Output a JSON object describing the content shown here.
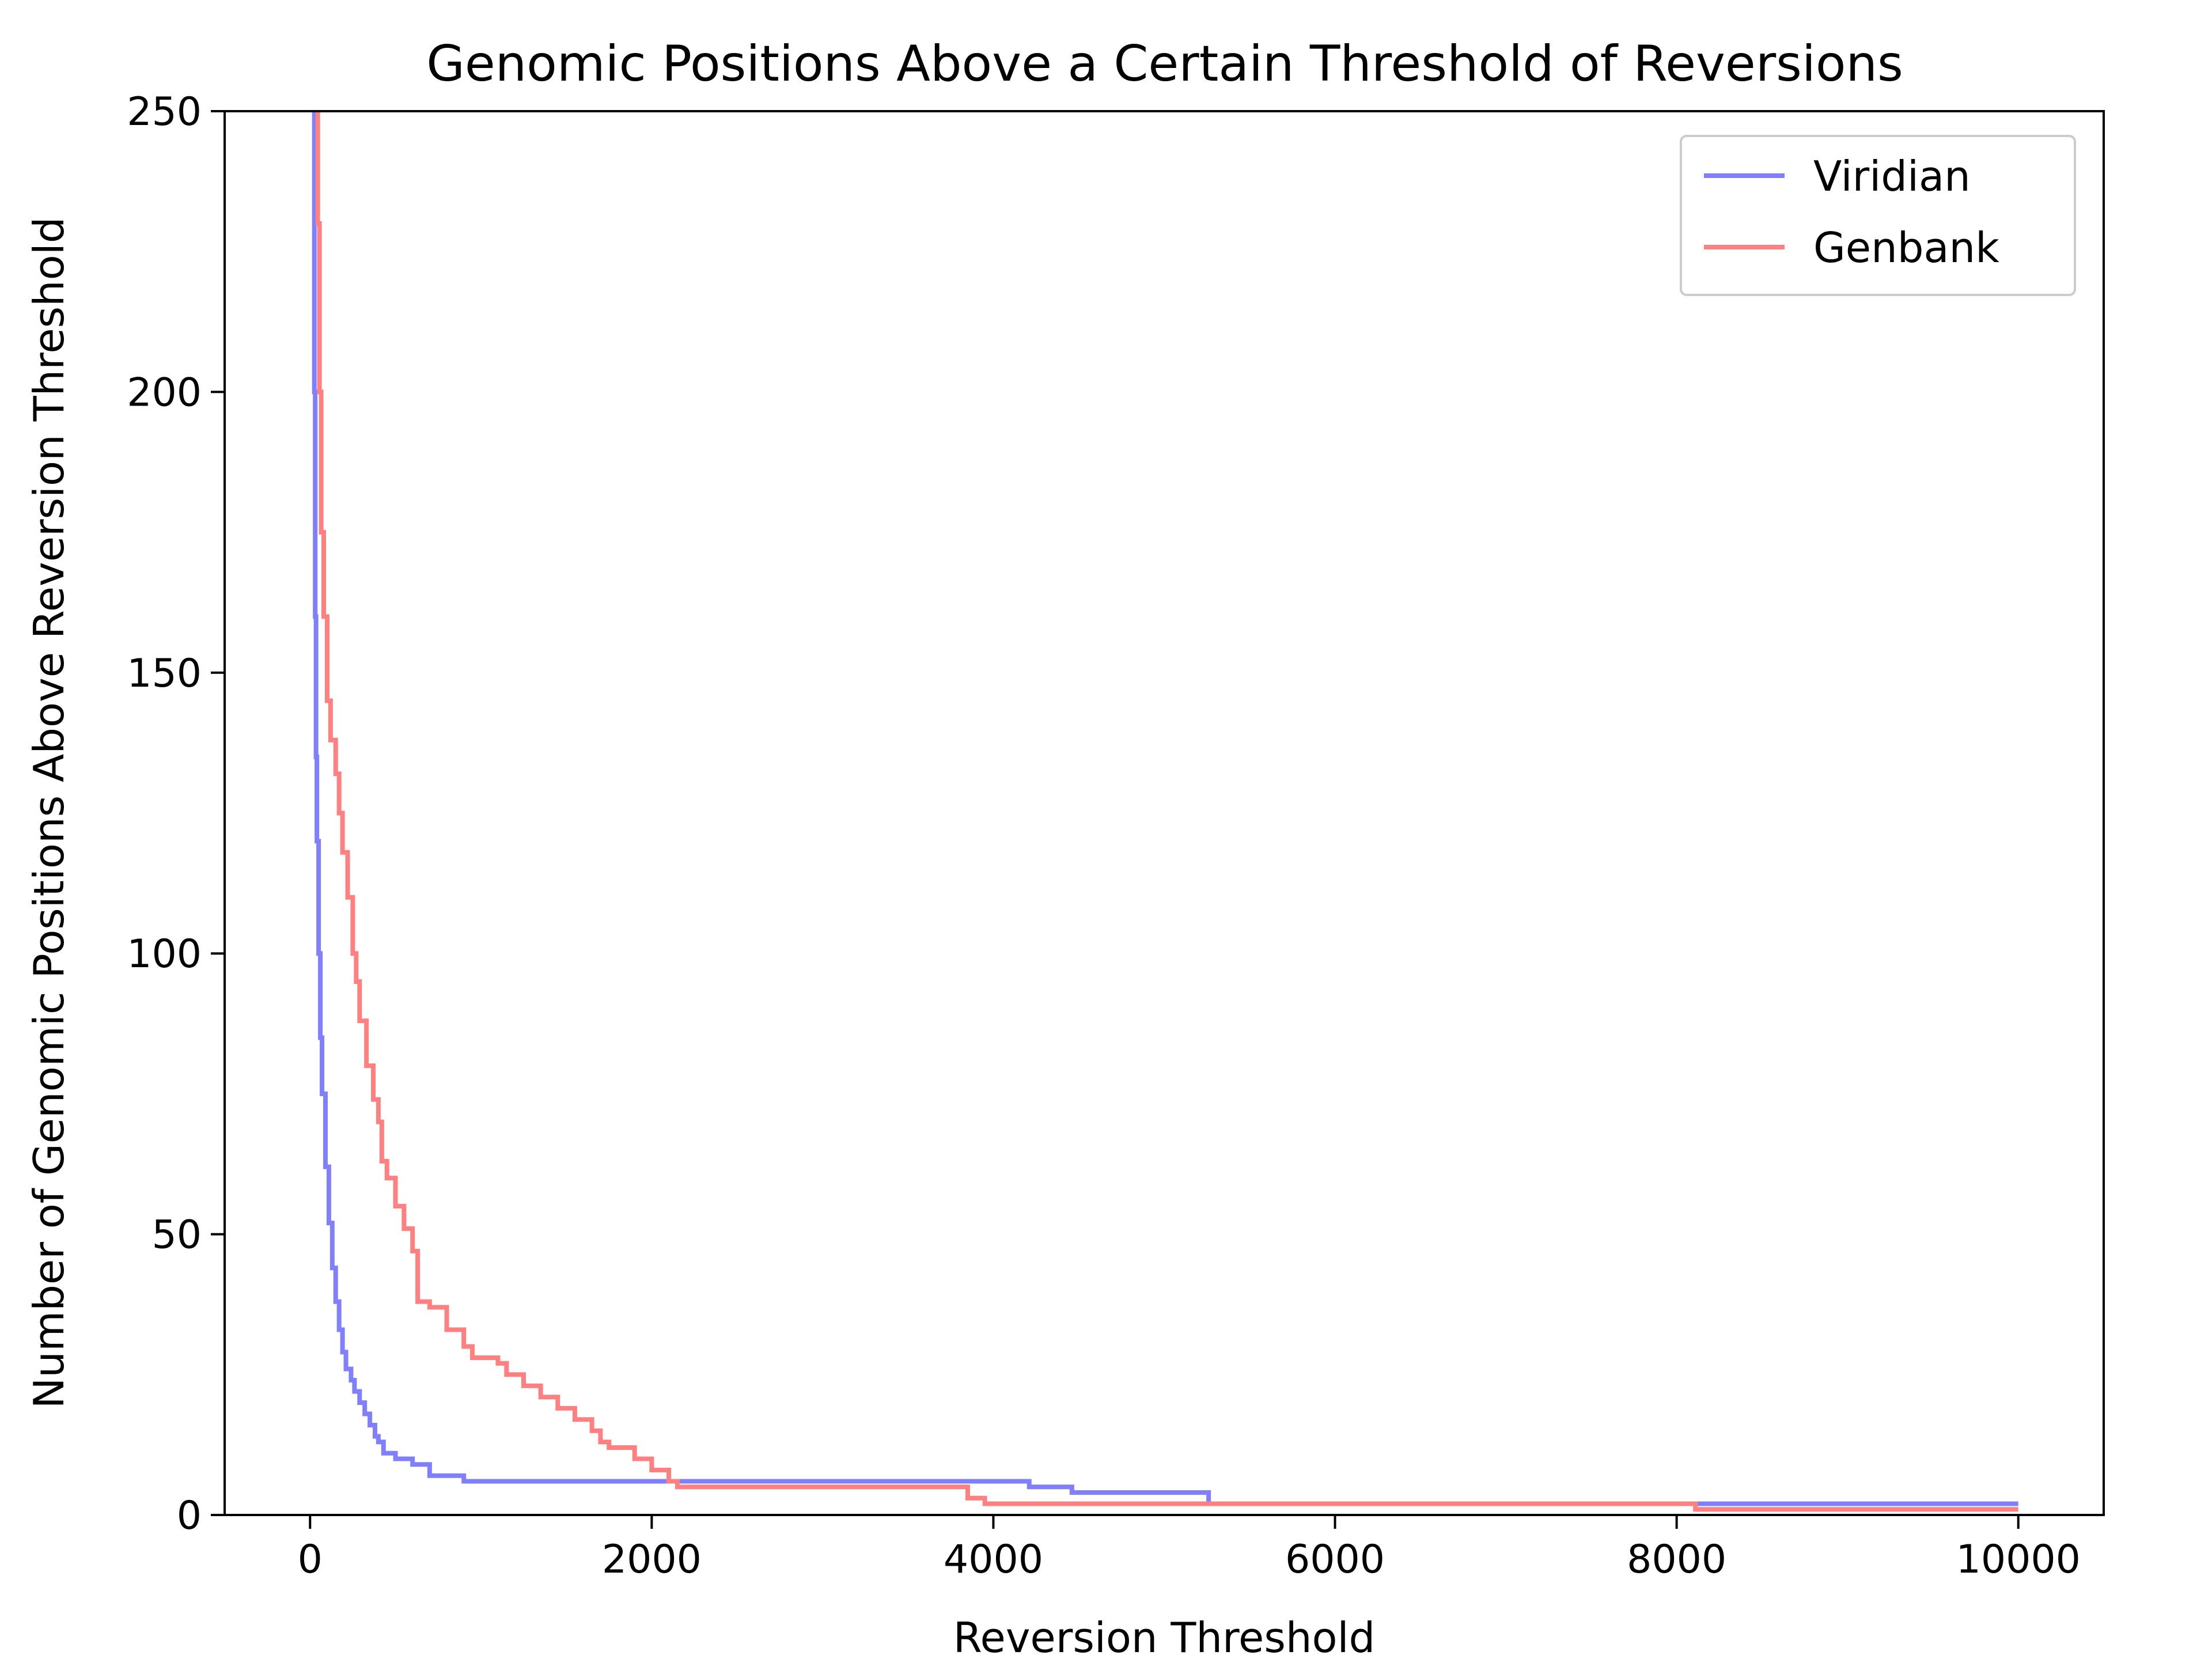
{
  "chart_data": {
    "type": "line",
    "title": "Genomic Positions Above a Certain Threshold of Reversions",
    "xlabel": "Reversion Threshold",
    "ylabel": "Number of Genomic Positions Above Reversion Threshold",
    "xlim": [
      -500,
      10500
    ],
    "ylim": [
      0,
      250
    ],
    "xticks": [
      0,
      2000,
      4000,
      6000,
      8000,
      10000
    ],
    "yticks": [
      0,
      50,
      100,
      150,
      200,
      250
    ],
    "grid": false,
    "legend_position": "top-right",
    "series": [
      {
        "name": "Viridian",
        "color": "#8080ff",
        "points": [
          [
            20,
            260
          ],
          [
            25,
            200
          ],
          [
            30,
            160
          ],
          [
            35,
            135
          ],
          [
            40,
            120
          ],
          [
            50,
            100
          ],
          [
            60,
            85
          ],
          [
            70,
            75
          ],
          [
            90,
            62
          ],
          [
            110,
            52
          ],
          [
            130,
            44
          ],
          [
            150,
            38
          ],
          [
            170,
            33
          ],
          [
            190,
            29
          ],
          [
            210,
            26
          ],
          [
            240,
            24
          ],
          [
            260,
            22
          ],
          [
            290,
            20
          ],
          [
            320,
            18
          ],
          [
            350,
            16
          ],
          [
            380,
            14
          ],
          [
            400,
            13
          ],
          [
            430,
            11
          ],
          [
            500,
            10
          ],
          [
            600,
            9
          ],
          [
            700,
            7
          ],
          [
            900,
            6
          ],
          [
            4200,
            6
          ],
          [
            4210,
            5
          ],
          [
            4450,
            5
          ],
          [
            4460,
            4
          ],
          [
            5250,
            4
          ],
          [
            5260,
            2
          ],
          [
            10000,
            2
          ]
        ]
      },
      {
        "name": "Genbank",
        "color": "#ff8080",
        "points": [
          [
            30,
            260
          ],
          [
            45,
            230
          ],
          [
            55,
            200
          ],
          [
            65,
            175
          ],
          [
            80,
            160
          ],
          [
            100,
            145
          ],
          [
            120,
            138
          ],
          [
            150,
            132
          ],
          [
            170,
            125
          ],
          [
            190,
            118
          ],
          [
            220,
            110
          ],
          [
            250,
            100
          ],
          [
            270,
            95
          ],
          [
            290,
            88
          ],
          [
            330,
            80
          ],
          [
            370,
            74
          ],
          [
            400,
            70
          ],
          [
            420,
            63
          ],
          [
            450,
            60
          ],
          [
            500,
            55
          ],
          [
            550,
            51
          ],
          [
            600,
            47
          ],
          [
            630,
            38
          ],
          [
            700,
            37
          ],
          [
            800,
            33
          ],
          [
            900,
            30
          ],
          [
            950,
            28
          ],
          [
            1100,
            27
          ],
          [
            1150,
            25
          ],
          [
            1250,
            23
          ],
          [
            1350,
            21
          ],
          [
            1450,
            19
          ],
          [
            1550,
            17
          ],
          [
            1650,
            15
          ],
          [
            1700,
            13
          ],
          [
            1750,
            12
          ],
          [
            1900,
            10
          ],
          [
            2000,
            8
          ],
          [
            2100,
            6
          ],
          [
            2150,
            5
          ],
          [
            3800,
            5
          ],
          [
            3850,
            3
          ],
          [
            3950,
            2
          ],
          [
            8100,
            2
          ],
          [
            8110,
            1
          ],
          [
            10000,
            1
          ]
        ]
      }
    ]
  }
}
